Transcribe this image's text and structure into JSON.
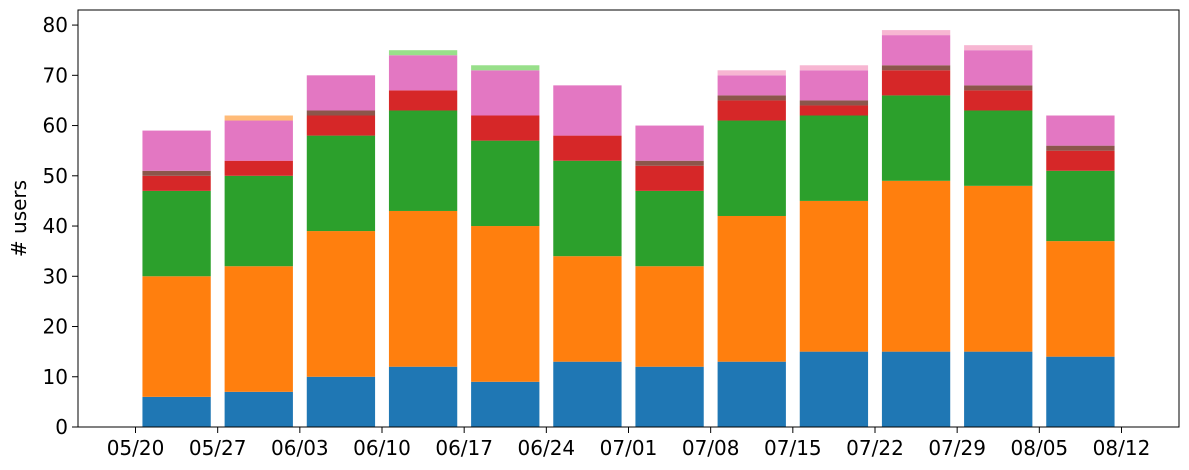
{
  "chart_data": {
    "type": "bar",
    "stacked": true,
    "ylabel": "# users",
    "xlabel": "",
    "ylim": [
      0,
      83
    ],
    "yticks": [
      0,
      10,
      20,
      30,
      40,
      50,
      60,
      70,
      80
    ],
    "xtick_labels": [
      "05/20",
      "05/27",
      "06/03",
      "06/10",
      "06/17",
      "06/24",
      "07/01",
      "07/08",
      "07/15",
      "07/22",
      "07/29",
      "08/05",
      "08/12"
    ],
    "grid": false,
    "legend": "none",
    "series": [
      {
        "color": "#1f77b4",
        "values": [
          6,
          7,
          10,
          12,
          9,
          13,
          12,
          13,
          15,
          15,
          15,
          14
        ]
      },
      {
        "color": "#ff7f0e",
        "values": [
          24,
          25,
          29,
          31,
          31,
          21,
          20,
          29,
          30,
          34,
          33,
          23
        ]
      },
      {
        "color": "#2ca02c",
        "values": [
          17,
          18,
          19,
          20,
          17,
          19,
          15,
          19,
          17,
          17,
          15,
          14
        ]
      },
      {
        "color": "#d62728",
        "values": [
          3,
          3,
          4,
          4,
          5,
          5,
          5,
          4,
          2,
          5,
          4,
          4
        ]
      },
      {
        "color": "#8c564b",
        "values": [
          1,
          0,
          1,
          0,
          0,
          0,
          1,
          1,
          1,
          1,
          1,
          1
        ]
      },
      {
        "color": "#e377c2",
        "values": [
          8,
          8,
          7,
          7,
          9,
          10,
          7,
          4,
          6,
          6,
          7,
          6
        ]
      },
      {
        "color": "#ffbb78",
        "values": [
          0,
          1,
          0,
          0,
          0,
          0,
          0,
          0,
          0,
          0,
          0,
          0
        ]
      },
      {
        "color": "#98df8a",
        "values": [
          0,
          0,
          0,
          1,
          1,
          0,
          0,
          0,
          0,
          0,
          0,
          0
        ]
      },
      {
        "color": "#f7b6d2",
        "values": [
          0,
          0,
          0,
          0,
          0,
          0,
          0,
          1,
          1,
          1,
          1,
          0
        ]
      }
    ]
  }
}
